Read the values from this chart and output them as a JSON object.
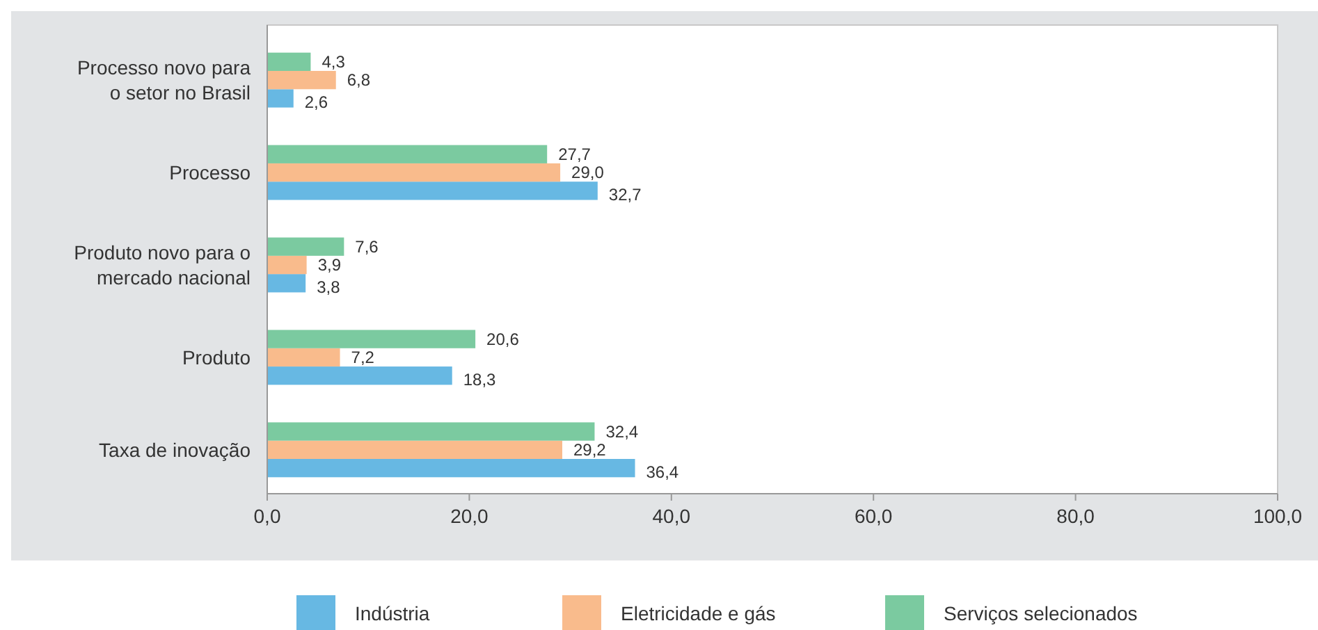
{
  "chart_data": {
    "type": "bar",
    "orientation": "horizontal",
    "categories": [
      "Processo novo para o setor no Brasil",
      "Processo",
      "Produto novo para o mercado nacional",
      "Produto",
      "Taxa de inovação"
    ],
    "series": [
      {
        "name": "Indústria",
        "color": "#67b8e3",
        "values": [
          2.6,
          32.7,
          3.8,
          18.3,
          36.4
        ],
        "value_labels": [
          "2,6",
          "32,7",
          "3,8",
          "18,3",
          "36,4"
        ]
      },
      {
        "name": "Eletricidade e gás",
        "color": "#f9bb8c",
        "values": [
          6.8,
          29.0,
          3.9,
          7.2,
          29.2
        ],
        "value_labels": [
          "6,8",
          "29,0",
          "3,9",
          "7,2",
          "29,2"
        ]
      },
      {
        "name": "Serviços selecionados",
        "color": "#7bcaa0",
        "values": [
          4.3,
          27.7,
          7.6,
          20.6,
          32.4
        ],
        "value_labels": [
          "4,3",
          "27,7",
          "7,6",
          "20,6",
          "32,4"
        ]
      }
    ],
    "xlim": [
      0,
      100
    ],
    "xticks": [
      {
        "value": 0,
        "label": "0,0"
      },
      {
        "value": 20,
        "label": "20,0"
      },
      {
        "value": 40,
        "label": "40,0"
      },
      {
        "value": 60,
        "label": "60,0"
      },
      {
        "value": 80,
        "label": "80,0"
      },
      {
        "value": 100,
        "label": "100,0"
      }
    ],
    "grid": false,
    "legend": "bottom"
  }
}
